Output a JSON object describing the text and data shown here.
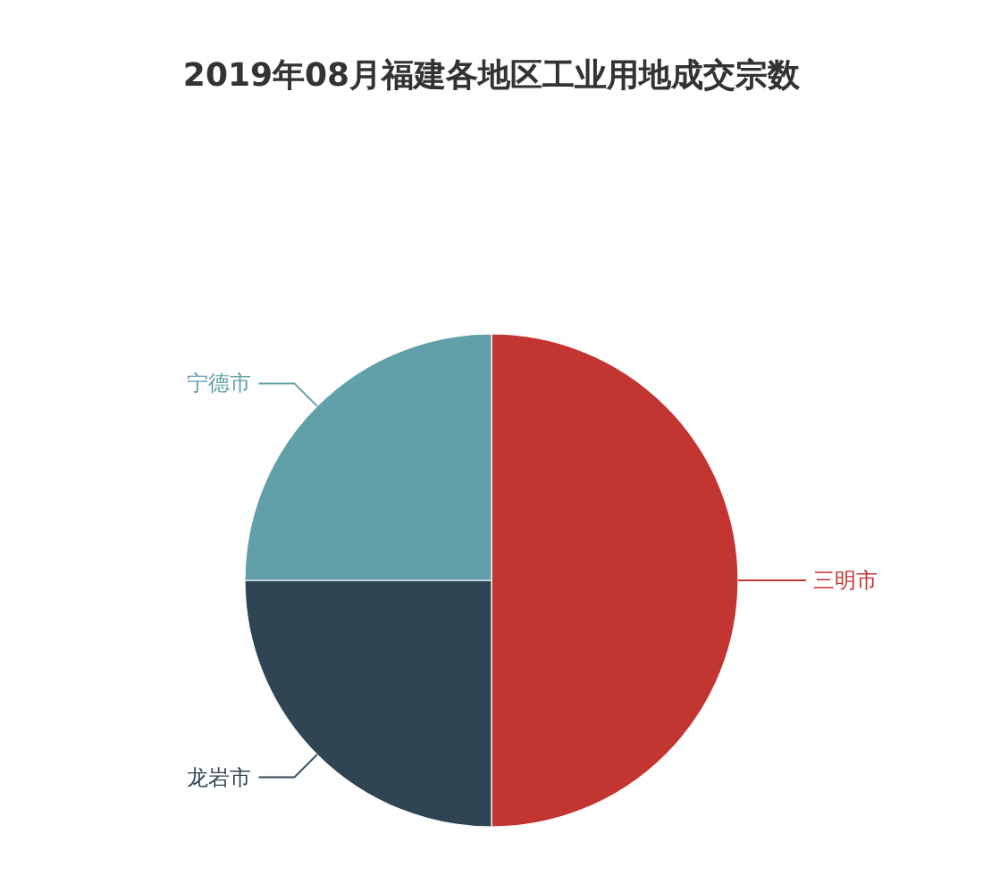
{
  "chart_data": {
    "type": "pie",
    "title": "2019年08月福建各地区工业用地成交宗数",
    "categories": [
      "三明市",
      "龙岩市",
      "宁德市"
    ],
    "values": [
      50,
      25,
      25
    ],
    "colors": [
      "#c23531",
      "#2f4554",
      "#61a0a8"
    ]
  }
}
